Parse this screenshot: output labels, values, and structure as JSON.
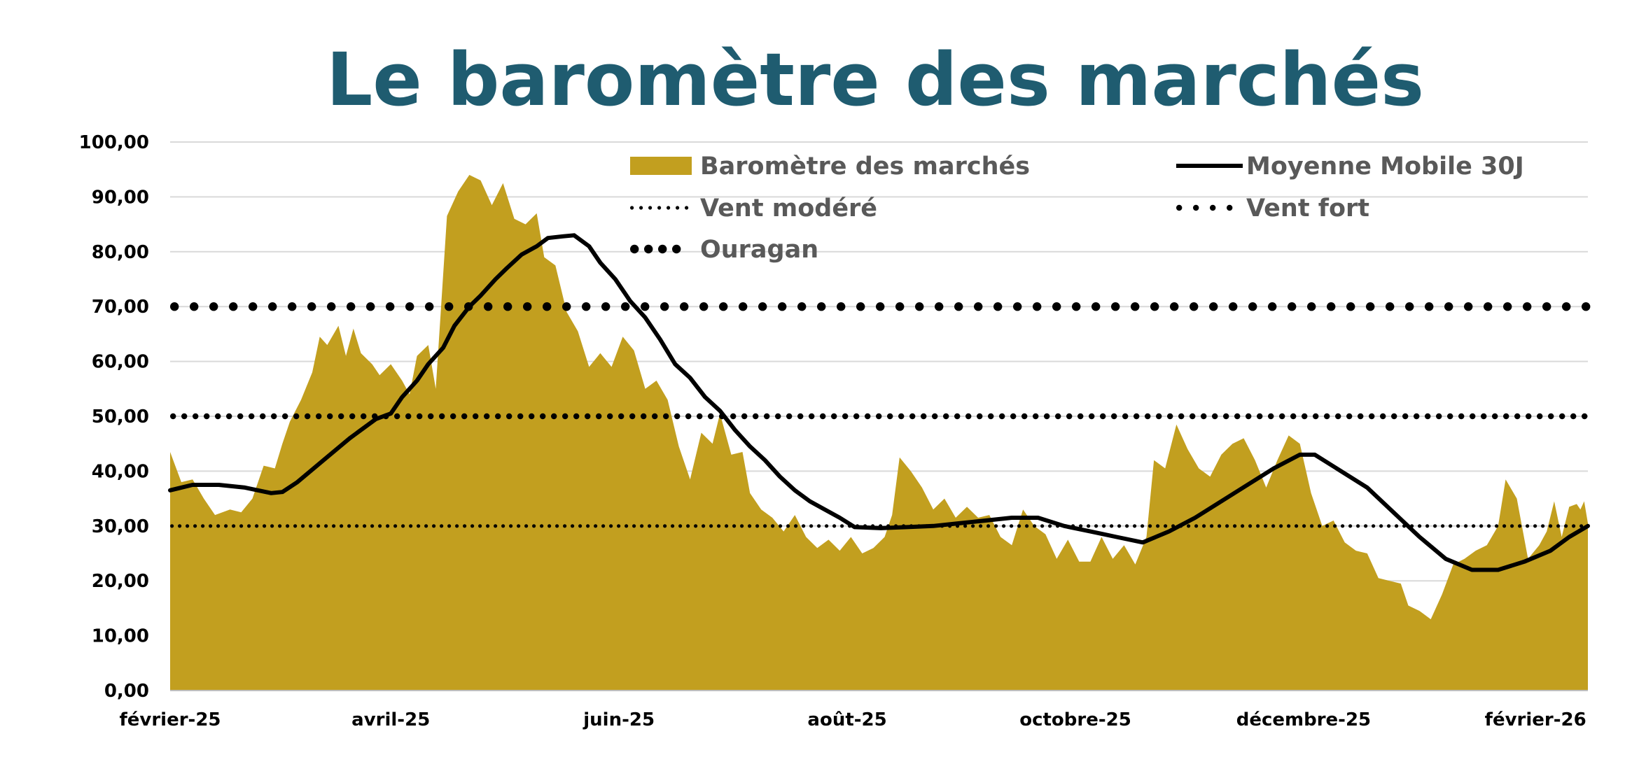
{
  "chart_data": {
    "type": "area",
    "title": "Le baromètre des marchés",
    "title_color": "#1F5C70",
    "ylim": [
      0,
      100
    ],
    "y_ticks": [
      "0,00",
      "10,00",
      "20,00",
      "30,00",
      "40,00",
      "50,00",
      "60,00",
      "70,00",
      "80,00",
      "90,00",
      "100,00"
    ],
    "x_ticks": [
      {
        "label": "février-25",
        "date": "2025-02-01"
      },
      {
        "label": "avril-25",
        "date": "2025-04-01"
      },
      {
        "label": "juin-25",
        "date": "2025-06-01"
      },
      {
        "label": "août-25",
        "date": "2025-08-01"
      },
      {
        "label": "octobre-25",
        "date": "2025-10-01"
      },
      {
        "label": "décembre-25",
        "date": "2025-12-01"
      },
      {
        "label": "février-26",
        "date": "2026-02-01"
      }
    ],
    "x_range": [
      "2025-02-01",
      "2026-02-15"
    ],
    "grid": true,
    "legend_position": "top-right",
    "series": [
      {
        "name": "Baromètre des marchés",
        "kind": "area",
        "color": "#C29F1F",
        "points": [
          [
            "2025-02-01",
            43.5
          ],
          [
            "2025-02-04",
            38.0
          ],
          [
            "2025-02-07",
            38.5
          ],
          [
            "2025-02-10",
            35.0
          ],
          [
            "2025-02-13",
            32.0
          ],
          [
            "2025-02-17",
            33.0
          ],
          [
            "2025-02-20",
            32.5
          ],
          [
            "2025-02-23",
            35.0
          ],
          [
            "2025-02-26",
            41.0
          ],
          [
            "2025-03-01",
            40.5
          ],
          [
            "2025-03-03",
            45.0
          ],
          [
            "2025-03-05",
            49.0
          ],
          [
            "2025-03-08",
            53.0
          ],
          [
            "2025-03-11",
            58.0
          ],
          [
            "2025-03-13",
            64.5
          ],
          [
            "2025-03-15",
            63.0
          ],
          [
            "2025-03-18",
            66.5
          ],
          [
            "2025-03-20",
            61.0
          ],
          [
            "2025-03-22",
            66.0
          ],
          [
            "2025-03-24",
            61.5
          ],
          [
            "2025-03-27",
            59.5
          ],
          [
            "2025-03-29",
            57.5
          ],
          [
            "2025-04-01",
            59.5
          ],
          [
            "2025-04-04",
            56.5
          ],
          [
            "2025-04-06",
            54.0
          ],
          [
            "2025-04-08",
            61.0
          ],
          [
            "2025-04-11",
            63.0
          ],
          [
            "2025-04-13",
            55.0
          ],
          [
            "2025-04-16",
            86.5
          ],
          [
            "2025-04-19",
            91.0
          ],
          [
            "2025-04-22",
            94.0
          ],
          [
            "2025-04-25",
            93.0
          ],
          [
            "2025-04-28",
            88.5
          ],
          [
            "2025-05-01",
            92.5
          ],
          [
            "2025-05-04",
            86.0
          ],
          [
            "2025-05-07",
            85.0
          ],
          [
            "2025-05-10",
            87.0
          ],
          [
            "2025-05-12",
            79.0
          ],
          [
            "2025-05-15",
            77.5
          ],
          [
            "2025-05-18",
            69.0
          ],
          [
            "2025-05-21",
            65.5
          ],
          [
            "2025-05-24",
            59.0
          ],
          [
            "2025-05-27",
            61.5
          ],
          [
            "2025-05-30",
            59.0
          ],
          [
            "2025-06-02",
            64.5
          ],
          [
            "2025-06-05",
            62.0
          ],
          [
            "2025-06-08",
            55.0
          ],
          [
            "2025-06-11",
            56.5
          ],
          [
            "2025-06-14",
            53.0
          ],
          [
            "2025-06-17",
            44.5
          ],
          [
            "2025-06-20",
            38.5
          ],
          [
            "2025-06-23",
            47.0
          ],
          [
            "2025-06-26",
            45.0
          ],
          [
            "2025-06-28",
            50.5
          ],
          [
            "2025-07-01",
            43.0
          ],
          [
            "2025-07-04",
            43.5
          ],
          [
            "2025-07-06",
            36.0
          ],
          [
            "2025-07-09",
            33.0
          ],
          [
            "2025-07-12",
            31.5
          ],
          [
            "2025-07-15",
            29.0
          ],
          [
            "2025-07-18",
            32.0
          ],
          [
            "2025-07-21",
            28.0
          ],
          [
            "2025-07-24",
            26.0
          ],
          [
            "2025-07-27",
            27.5
          ],
          [
            "2025-07-30",
            25.5
          ],
          [
            "2025-08-02",
            28.0
          ],
          [
            "2025-08-05",
            25.0
          ],
          [
            "2025-08-08",
            26.0
          ],
          [
            "2025-08-11",
            28.0
          ],
          [
            "2025-08-13",
            32.0
          ],
          [
            "2025-08-15",
            42.5
          ],
          [
            "2025-08-18",
            40.0
          ],
          [
            "2025-08-21",
            37.0
          ],
          [
            "2025-08-24",
            33.0
          ],
          [
            "2025-08-27",
            35.0
          ],
          [
            "2025-08-30",
            31.5
          ],
          [
            "2025-09-02",
            33.5
          ],
          [
            "2025-09-05",
            31.5
          ],
          [
            "2025-09-08",
            32.0
          ],
          [
            "2025-09-11",
            28.0
          ],
          [
            "2025-09-14",
            26.5
          ],
          [
            "2025-09-17",
            33.0
          ],
          [
            "2025-09-20",
            30.0
          ],
          [
            "2025-09-23",
            28.5
          ],
          [
            "2025-09-26",
            24.0
          ],
          [
            "2025-09-29",
            27.5
          ],
          [
            "2025-10-02",
            23.5
          ],
          [
            "2025-10-05",
            23.5
          ],
          [
            "2025-10-08",
            28.0
          ],
          [
            "2025-10-11",
            24.0
          ],
          [
            "2025-10-14",
            26.5
          ],
          [
            "2025-10-17",
            23.0
          ],
          [
            "2025-10-20",
            28.0
          ],
          [
            "2025-10-22",
            42.0
          ],
          [
            "2025-10-25",
            40.5
          ],
          [
            "2025-10-28",
            48.5
          ],
          [
            "2025-10-31",
            44.0
          ],
          [
            "2025-11-03",
            40.5
          ],
          [
            "2025-11-06",
            39.0
          ],
          [
            "2025-11-09",
            43.0
          ],
          [
            "2025-11-12",
            45.0
          ],
          [
            "2025-11-15",
            46.0
          ],
          [
            "2025-11-18",
            42.0
          ],
          [
            "2025-11-21",
            37.0
          ],
          [
            "2025-11-24",
            42.0
          ],
          [
            "2025-11-27",
            46.5
          ],
          [
            "2025-11-30",
            45.0
          ],
          [
            "2025-12-03",
            36.0
          ],
          [
            "2025-12-06",
            30.0
          ],
          [
            "2025-12-09",
            31.0
          ],
          [
            "2025-12-12",
            27.0
          ],
          [
            "2025-12-15",
            25.5
          ],
          [
            "2025-12-18",
            25.0
          ],
          [
            "2025-12-21",
            20.5
          ],
          [
            "2025-12-24",
            20.0
          ],
          [
            "2025-12-27",
            19.5
          ],
          [
            "2025-12-29",
            15.5
          ],
          [
            "2026-01-01",
            14.5
          ],
          [
            "2026-01-04",
            13.0
          ],
          [
            "2026-01-07",
            17.5
          ],
          [
            "2026-01-10",
            23.0
          ],
          [
            "2026-01-13",
            24.0
          ],
          [
            "2026-01-16",
            25.5
          ],
          [
            "2026-01-19",
            26.5
          ],
          [
            "2026-01-22",
            30.0
          ],
          [
            "2026-01-24",
            38.5
          ],
          [
            "2026-01-27",
            35.0
          ],
          [
            "2026-01-30",
            24.0
          ],
          [
            "2026-02-02",
            26.5
          ],
          [
            "2026-02-04",
            29.0
          ],
          [
            "2026-02-06",
            34.5
          ],
          [
            "2026-02-08",
            28.0
          ],
          [
            "2026-02-10",
            33.5
          ],
          [
            "2026-02-12",
            34.0
          ],
          [
            "2026-02-13",
            33.0
          ],
          [
            "2026-02-14",
            34.5
          ],
          [
            "2026-02-15",
            30.5
          ]
        ]
      },
      {
        "name": "Moyenne Mobile 30J",
        "kind": "line",
        "color": "#000000",
        "points": [
          [
            "2025-02-01",
            36.5
          ],
          [
            "2025-02-07",
            37.5
          ],
          [
            "2025-02-14",
            37.5
          ],
          [
            "2025-02-21",
            37.0
          ],
          [
            "2025-02-28",
            36.0
          ],
          [
            "2025-03-03",
            36.2
          ],
          [
            "2025-03-07",
            38.0
          ],
          [
            "2025-03-14",
            42.0
          ],
          [
            "2025-03-21",
            46.0
          ],
          [
            "2025-03-28",
            49.5
          ],
          [
            "2025-04-01",
            50.5
          ],
          [
            "2025-04-04",
            53.5
          ],
          [
            "2025-04-08",
            56.5
          ],
          [
            "2025-04-11",
            59.5
          ],
          [
            "2025-04-15",
            62.5
          ],
          [
            "2025-04-18",
            66.5
          ],
          [
            "2025-04-22",
            70.0
          ],
          [
            "2025-04-25",
            72.0
          ],
          [
            "2025-04-29",
            75.0
          ],
          [
            "2025-05-02",
            77.0
          ],
          [
            "2025-05-06",
            79.5
          ],
          [
            "2025-05-10",
            81.0
          ],
          [
            "2025-05-13",
            82.5
          ],
          [
            "2025-05-17",
            82.8
          ],
          [
            "2025-05-20",
            83.0
          ],
          [
            "2025-05-24",
            81.0
          ],
          [
            "2025-05-27",
            78.0
          ],
          [
            "2025-05-31",
            75.0
          ],
          [
            "2025-06-04",
            71.0
          ],
          [
            "2025-06-08",
            68.0
          ],
          [
            "2025-06-12",
            64.0
          ],
          [
            "2025-06-16",
            59.5
          ],
          [
            "2025-06-20",
            57.0
          ],
          [
            "2025-06-24",
            53.5
          ],
          [
            "2025-06-28",
            51.0
          ],
          [
            "2025-07-02",
            47.5
          ],
          [
            "2025-07-06",
            44.5
          ],
          [
            "2025-07-10",
            42.0
          ],
          [
            "2025-07-14",
            39.0
          ],
          [
            "2025-07-18",
            36.5
          ],
          [
            "2025-07-22",
            34.5
          ],
          [
            "2025-07-26",
            33.0
          ],
          [
            "2025-07-30",
            31.5
          ],
          [
            "2025-08-03",
            29.8
          ],
          [
            "2025-08-10",
            29.6
          ],
          [
            "2025-08-17",
            29.8
          ],
          [
            "2025-08-24",
            30.0
          ],
          [
            "2025-08-31",
            30.5
          ],
          [
            "2025-09-07",
            31.0
          ],
          [
            "2025-09-14",
            31.5
          ],
          [
            "2025-09-21",
            31.5
          ],
          [
            "2025-09-28",
            30.0
          ],
          [
            "2025-10-05",
            29.0
          ],
          [
            "2025-10-12",
            28.0
          ],
          [
            "2025-10-19",
            27.0
          ],
          [
            "2025-10-26",
            29.0
          ],
          [
            "2025-11-02",
            31.5
          ],
          [
            "2025-11-09",
            34.5
          ],
          [
            "2025-11-16",
            37.5
          ],
          [
            "2025-11-23",
            40.5
          ],
          [
            "2025-11-30",
            43.0
          ],
          [
            "2025-12-04",
            43.0
          ],
          [
            "2025-12-11",
            40.0
          ],
          [
            "2025-12-18",
            37.0
          ],
          [
            "2025-12-25",
            32.5
          ],
          [
            "2026-01-01",
            28.0
          ],
          [
            "2026-01-08",
            24.0
          ],
          [
            "2026-01-15",
            22.0
          ],
          [
            "2026-01-22",
            22.0
          ],
          [
            "2026-01-29",
            23.5
          ],
          [
            "2026-02-05",
            25.5
          ],
          [
            "2026-02-10",
            28.0
          ],
          [
            "2026-02-15",
            30.0
          ]
        ]
      },
      {
        "name": "Vent modéré",
        "kind": "threshold",
        "value": 30,
        "color": "#000000",
        "dot_style": "small"
      },
      {
        "name": "Vent fort",
        "kind": "threshold",
        "value": 50,
        "color": "#000000",
        "dot_style": "medium"
      },
      {
        "name": "Ouragan",
        "kind": "threshold",
        "value": 70,
        "color": "#000000",
        "dot_style": "large"
      }
    ]
  }
}
